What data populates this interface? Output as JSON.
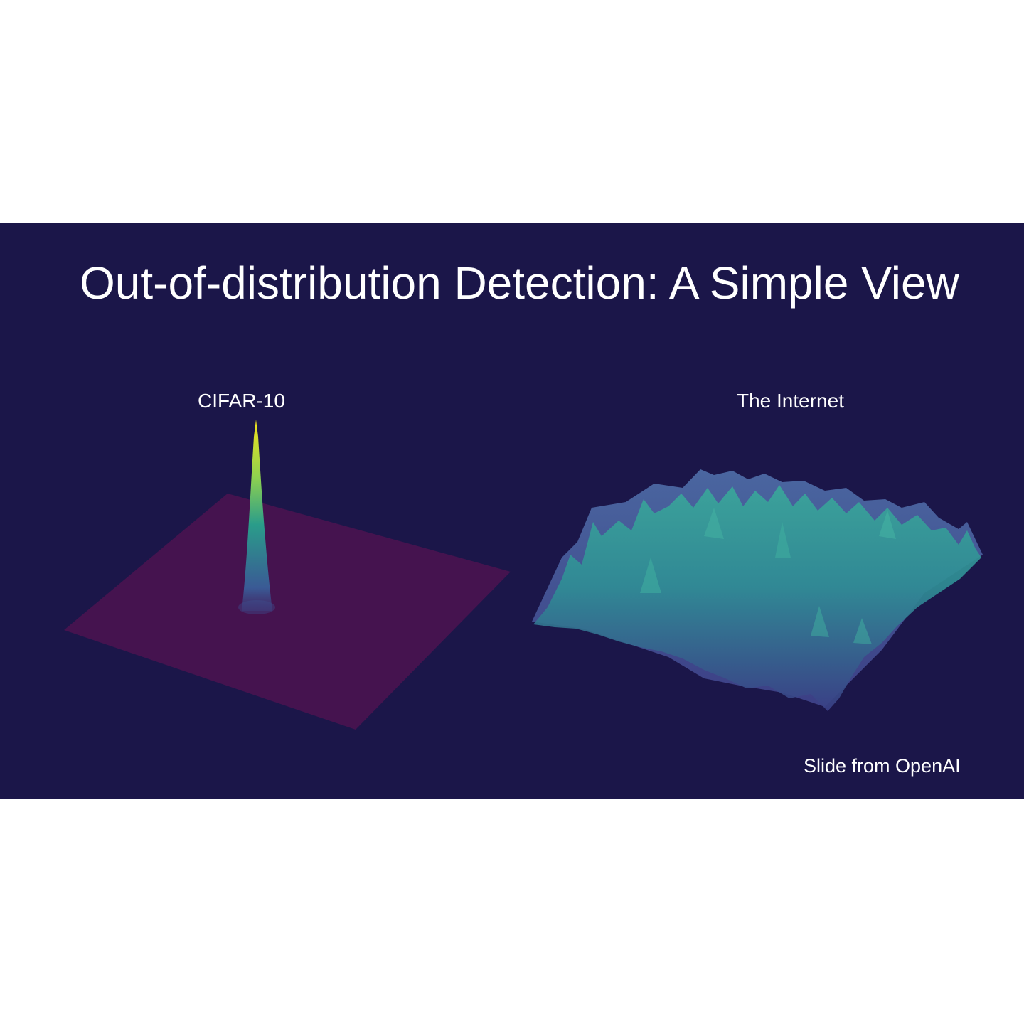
{
  "slide": {
    "title": "Out-of-distribution Detection: A Simple View",
    "left_panel": {
      "label": "CIFAR-10"
    },
    "right_panel": {
      "label": "The Internet"
    },
    "credit": "Slide from OpenAI"
  },
  "colors": {
    "background": "#1b1649",
    "plane": "#45134f",
    "peak_top": "#f4e21a",
    "peak_mid": "#2a9c8a",
    "peak_base": "#3c4a8a",
    "terrain_high": "#3aa79a",
    "terrain_low": "#3a3f86"
  }
}
